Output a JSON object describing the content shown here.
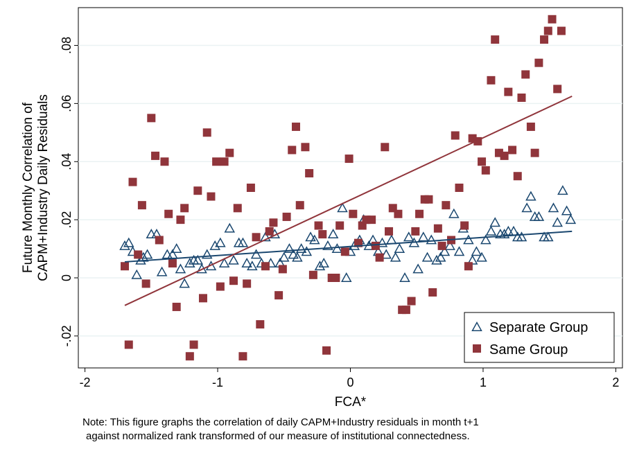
{
  "chart_data": {
    "type": "scatter",
    "title": "",
    "xlabel": "FCA*",
    "ylabel": [
      "Future Monthly Correlation of",
      "CAPM+Industry  Daily Residuals"
    ],
    "xlim": [
      -2.05,
      2.05
    ],
    "ylim": [
      -0.031,
      0.093
    ],
    "xticks": [
      -2,
      -1,
      0,
      1,
      2
    ],
    "xtick_labels": [
      "-2",
      "-1",
      "0",
      "1",
      "2"
    ],
    "yticks": [
      -0.02,
      0,
      0.02,
      0.04,
      0.06,
      0.08
    ],
    "ytick_labels": [
      "-.02",
      "0",
      ".02",
      ".04",
      ".06",
      ".08"
    ],
    "grid": "horizontal",
    "legend_position": "bottom-right",
    "colors": {
      "separate": "#1a476f",
      "same": "#90353b"
    },
    "series": [
      {
        "name": "Separate Group",
        "marker": "hollow-triangle",
        "fit_line": [
          [
            -1.7,
            0.0055
          ],
          [
            1.67,
            0.016
          ]
        ],
        "points": [
          [
            -1.7,
            0.011
          ],
          [
            -1.67,
            0.012
          ],
          [
            -1.64,
            0.009
          ],
          [
            -1.61,
            0.001
          ],
          [
            -1.58,
            0.006
          ],
          [
            -1.56,
            0.007
          ],
          [
            -1.53,
            0.008
          ],
          [
            -1.5,
            0.015
          ],
          [
            -1.46,
            0.015
          ],
          [
            -1.42,
            0.002
          ],
          [
            -1.38,
            0.008
          ],
          [
            -1.34,
            0.008
          ],
          [
            -1.31,
            0.01
          ],
          [
            -1.28,
            0.003
          ],
          [
            -1.25,
            -0.002
          ],
          [
            -1.21,
            0.005
          ],
          [
            -1.18,
            0.006
          ],
          [
            -1.15,
            0.006
          ],
          [
            -1.12,
            0.003
          ],
          [
            -1.08,
            0.008
          ],
          [
            -1.05,
            0.004
          ],
          [
            -1.02,
            0.011
          ],
          [
            -0.98,
            0.012
          ],
          [
            -0.95,
            0.005
          ],
          [
            -0.91,
            0.017
          ],
          [
            -0.88,
            0.006
          ],
          [
            -0.84,
            0.012
          ],
          [
            -0.81,
            0.012
          ],
          [
            -0.78,
            0.005
          ],
          [
            -0.74,
            0.004
          ],
          [
            -0.71,
            0.008
          ],
          [
            -0.67,
            0.005
          ],
          [
            -0.64,
            0.014
          ],
          [
            -0.6,
            0.005
          ],
          [
            -0.57,
            0.015
          ],
          [
            -0.53,
            0.005
          ],
          [
            -0.5,
            0.007
          ],
          [
            -0.46,
            0.01
          ],
          [
            -0.43,
            0.008
          ],
          [
            -0.4,
            0.007
          ],
          [
            -0.37,
            0.01
          ],
          [
            -0.33,
            0.009
          ],
          [
            -0.3,
            0.014
          ],
          [
            -0.27,
            0.013
          ],
          [
            -0.23,
            0.004
          ],
          [
            -0.2,
            0.005
          ],
          [
            -0.17,
            0.011
          ],
          [
            -0.13,
            0.015
          ],
          [
            -0.1,
            0.01
          ],
          [
            -0.06,
            0.024
          ],
          [
            -0.03,
            0.0
          ],
          [
            0.0,
            0.009
          ],
          [
            0.03,
            0.011
          ],
          [
            0.07,
            0.013
          ],
          [
            0.1,
            0.02
          ],
          [
            0.14,
            0.011
          ],
          [
            0.17,
            0.013
          ],
          [
            0.21,
            0.009
          ],
          [
            0.24,
            0.012
          ],
          [
            0.27,
            0.008
          ],
          [
            0.31,
            0.013
          ],
          [
            0.34,
            0.007
          ],
          [
            0.37,
            0.01
          ],
          [
            0.41,
            0.0
          ],
          [
            0.44,
            0.014
          ],
          [
            0.48,
            0.012
          ],
          [
            0.51,
            0.003
          ],
          [
            0.55,
            0.014
          ],
          [
            0.58,
            0.007
          ],
          [
            0.61,
            0.013
          ],
          [
            0.65,
            0.006
          ],
          [
            0.68,
            0.007
          ],
          [
            0.71,
            0.009
          ],
          [
            0.75,
            0.011
          ],
          [
            0.78,
            0.022
          ],
          [
            0.82,
            0.009
          ],
          [
            0.85,
            0.017
          ],
          [
            0.89,
            0.013
          ],
          [
            0.92,
            0.006
          ],
          [
            0.95,
            0.009
          ],
          [
            0.99,
            0.007
          ],
          [
            1.02,
            0.013
          ],
          [
            1.06,
            0.016
          ],
          [
            1.09,
            0.019
          ],
          [
            1.13,
            0.015
          ],
          [
            1.16,
            0.015
          ],
          [
            1.19,
            0.016
          ],
          [
            1.23,
            0.016
          ],
          [
            1.26,
            0.014
          ],
          [
            1.29,
            0.014
          ],
          [
            1.33,
            0.024
          ],
          [
            1.36,
            0.028
          ],
          [
            1.39,
            0.021
          ],
          [
            1.42,
            0.021
          ],
          [
            1.46,
            0.014
          ],
          [
            1.49,
            0.014
          ],
          [
            1.53,
            0.024
          ],
          [
            1.56,
            0.019
          ],
          [
            1.6,
            0.03
          ],
          [
            1.63,
            0.023
          ],
          [
            1.66,
            0.02
          ]
        ]
      },
      {
        "name": "Same Group",
        "marker": "filled-square",
        "fit_line": [
          [
            -1.7,
            -0.0095
          ],
          [
            1.67,
            0.0625
          ]
        ],
        "points": [
          [
            -1.7,
            0.004
          ],
          [
            -1.67,
            -0.023
          ],
          [
            -1.64,
            0.033
          ],
          [
            -1.6,
            0.008
          ],
          [
            -1.57,
            0.025
          ],
          [
            -1.54,
            -0.002
          ],
          [
            -1.5,
            0.055
          ],
          [
            -1.47,
            0.042
          ],
          [
            -1.44,
            0.013
          ],
          [
            -1.4,
            0.04
          ],
          [
            -1.37,
            0.022
          ],
          [
            -1.34,
            0.005
          ],
          [
            -1.31,
            -0.01
          ],
          [
            -1.28,
            0.02
          ],
          [
            -1.25,
            0.024
          ],
          [
            -1.21,
            -0.027
          ],
          [
            -1.18,
            -0.023
          ],
          [
            -1.15,
            0.03
          ],
          [
            -1.11,
            -0.007
          ],
          [
            -1.08,
            0.05
          ],
          [
            -1.05,
            0.028
          ],
          [
            -1.01,
            0.04
          ],
          [
            -0.98,
            -0.003
          ],
          [
            -0.95,
            0.04
          ],
          [
            -0.91,
            0.043
          ],
          [
            -0.88,
            -0.001
          ],
          [
            -0.85,
            0.024
          ],
          [
            -0.81,
            -0.027
          ],
          [
            -0.78,
            -0.002
          ],
          [
            -0.75,
            0.031
          ],
          [
            -0.71,
            0.014
          ],
          [
            -0.68,
            -0.016
          ],
          [
            -0.64,
            0.004
          ],
          [
            -0.61,
            0.016
          ],
          [
            -0.58,
            0.019
          ],
          [
            -0.54,
            -0.006
          ],
          [
            -0.51,
            0.003
          ],
          [
            -0.48,
            0.021
          ],
          [
            -0.44,
            0.044
          ],
          [
            -0.41,
            0.052
          ],
          [
            -0.38,
            0.025
          ],
          [
            -0.34,
            0.045
          ],
          [
            -0.31,
            0.036
          ],
          [
            -0.28,
            0.001
          ],
          [
            -0.24,
            0.018
          ],
          [
            -0.21,
            0.015
          ],
          [
            -0.18,
            -0.025
          ],
          [
            -0.14,
            0.0
          ],
          [
            -0.11,
            0.0
          ],
          [
            -0.08,
            0.018
          ],
          [
            -0.04,
            0.009
          ],
          [
            -0.01,
            0.041
          ],
          [
            0.02,
            0.022
          ],
          [
            0.06,
            0.012
          ],
          [
            0.09,
            0.018
          ],
          [
            0.12,
            0.02
          ],
          [
            0.16,
            0.02
          ],
          [
            0.19,
            0.011
          ],
          [
            0.22,
            0.007
          ],
          [
            0.26,
            0.045
          ],
          [
            0.29,
            0.016
          ],
          [
            0.32,
            0.024
          ],
          [
            0.36,
            0.022
          ],
          [
            0.39,
            -0.011
          ],
          [
            0.42,
            -0.011
          ],
          [
            0.46,
            -0.008
          ],
          [
            0.49,
            0.016
          ],
          [
            0.52,
            0.022
          ],
          [
            0.56,
            0.027
          ],
          [
            0.59,
            0.027
          ],
          [
            0.62,
            -0.005
          ],
          [
            0.66,
            0.017
          ],
          [
            0.69,
            0.011
          ],
          [
            0.72,
            0.025
          ],
          [
            0.76,
            0.013
          ],
          [
            0.79,
            0.049
          ],
          [
            0.82,
            0.031
          ],
          [
            0.86,
            0.018
          ],
          [
            0.89,
            0.004
          ],
          [
            0.92,
            0.048
          ],
          [
            0.96,
            0.047
          ],
          [
            0.99,
            0.04
          ],
          [
            1.02,
            0.037
          ],
          [
            1.06,
            0.068
          ],
          [
            1.09,
            0.082
          ],
          [
            1.12,
            0.043
          ],
          [
            1.16,
            0.042
          ],
          [
            1.19,
            0.064
          ],
          [
            1.22,
            0.044
          ],
          [
            1.26,
            0.035
          ],
          [
            1.29,
            0.062
          ],
          [
            1.32,
            0.07
          ],
          [
            1.36,
            0.052
          ],
          [
            1.39,
            0.043
          ],
          [
            1.42,
            0.074
          ],
          [
            1.46,
            0.082
          ],
          [
            1.49,
            0.085
          ],
          [
            1.52,
            0.089
          ],
          [
            1.56,
            0.065
          ],
          [
            1.59,
            0.085
          ]
        ]
      }
    ],
    "note": [
      "Note: This figure graphs the correlation of daily CAPM+Industry residuals in month t+1",
      "against normalized rank transformed of our measure of institutional connectedness."
    ]
  }
}
